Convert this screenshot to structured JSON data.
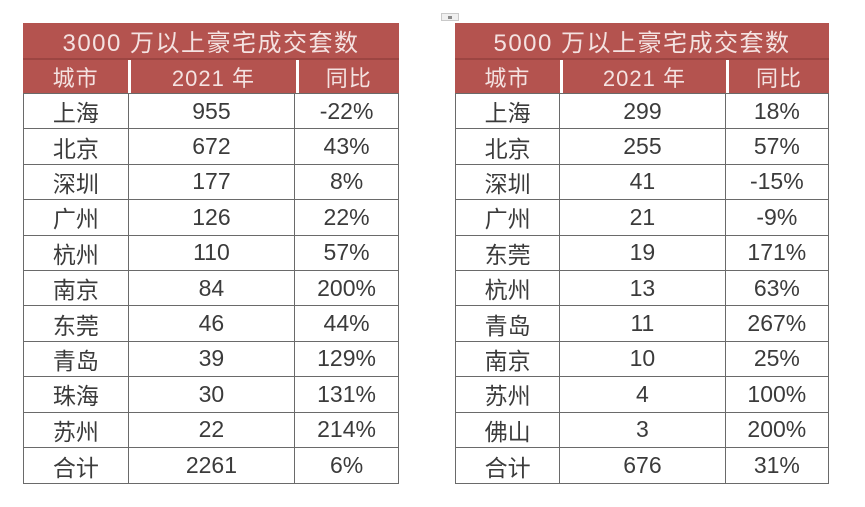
{
  "colors": {
    "header_bg": "#b4534f",
    "header_text": "#f4e2e1",
    "title_divider": "#9c4542",
    "grid_border": "#6a6a6a",
    "body_text": "#3b3b3b",
    "page_bg": "#ffffff"
  },
  "chart_data": [
    {
      "type": "table",
      "title": "3000 万以上豪宅成交套数",
      "columns": [
        "城市",
        "2021 年",
        "同比"
      ],
      "rows": [
        [
          "上海",
          955,
          "-22%"
        ],
        [
          "北京",
          672,
          "43%"
        ],
        [
          "深圳",
          177,
          "8%"
        ],
        [
          "广州",
          126,
          "22%"
        ],
        [
          "杭州",
          110,
          "57%"
        ],
        [
          "南京",
          84,
          "200%"
        ],
        [
          "东莞",
          46,
          "44%"
        ],
        [
          "青岛",
          39,
          "129%"
        ],
        [
          "珠海",
          30,
          "131%"
        ],
        [
          "苏州",
          22,
          "214%"
        ],
        [
          "合计",
          2261,
          "6%"
        ]
      ]
    },
    {
      "type": "table",
      "title": "5000 万以上豪宅成交套数",
      "columns": [
        "城市",
        "2021 年",
        "同比"
      ],
      "rows": [
        [
          "上海",
          299,
          "18%"
        ],
        [
          "北京",
          255,
          "57%"
        ],
        [
          "深圳",
          41,
          "-15%"
        ],
        [
          "广州",
          21,
          "-9%"
        ],
        [
          "东莞",
          19,
          "171%"
        ],
        [
          "杭州",
          13,
          "63%"
        ],
        [
          "青岛",
          11,
          "267%"
        ],
        [
          "南京",
          10,
          "25%"
        ],
        [
          "苏州",
          4,
          "100%"
        ],
        [
          "佛山",
          3,
          "200%"
        ],
        [
          "合计",
          676,
          "31%"
        ]
      ]
    }
  ]
}
